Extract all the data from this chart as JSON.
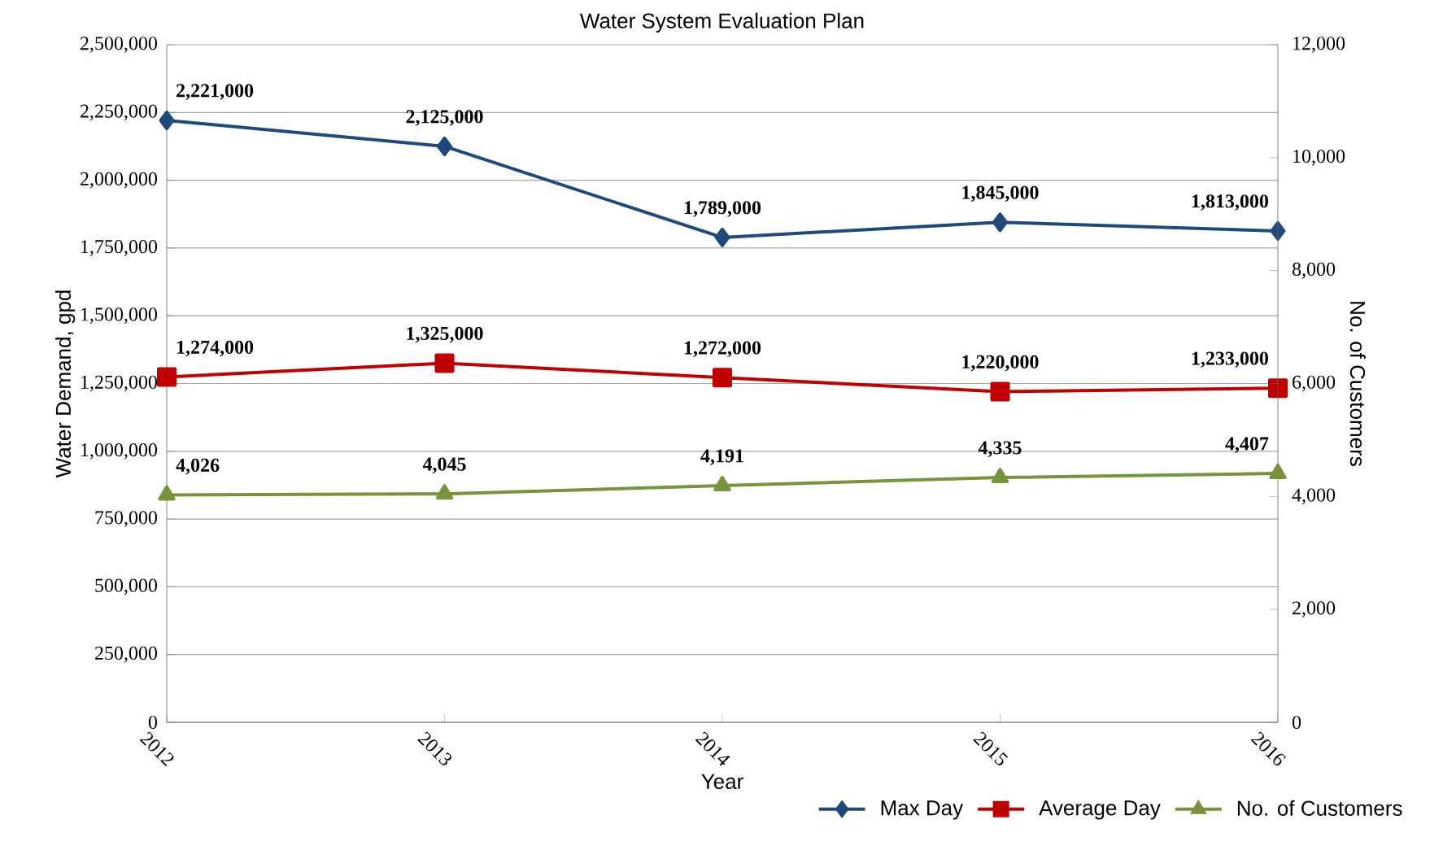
{
  "chart_data": {
    "type": "line",
    "title": "Water System Evaluation Plan",
    "xlabel": "Year",
    "ylabel": "Water Demand, gpd",
    "y2label": "No. of Customers",
    "categories": [
      "2012",
      "2013",
      "2014",
      "2015",
      "2016"
    ],
    "series": [
      {
        "name": "Max Day",
        "color": "#1f497d",
        "marker": "diamond",
        "values": [
          2221000,
          2125000,
          1789000,
          1845000,
          1813000
        ],
        "value_labels": [
          "2,221,000",
          "2,125,000",
          "1,789,000",
          "1,845,000",
          "1,813,000"
        ]
      },
      {
        "name": "Average Day",
        "color": "#c00000",
        "marker": "square",
        "values": [
          1274000,
          1325000,
          1272000,
          1220000,
          1233000
        ],
        "value_labels": [
          "1,274,000",
          "1,325,000",
          "1,272,000",
          "1,220,000",
          "1,233,000"
        ]
      },
      {
        "name": "No. of Customers",
        "color": "#77933c",
        "marker": "triangle",
        "axis": "y2",
        "values": [
          4026,
          4045,
          4191,
          4335,
          4407
        ],
        "value_labels": [
          "4,026",
          "4,045",
          "4,191",
          "4,335",
          "4,407"
        ]
      }
    ],
    "ylim": [
      0,
      2500000
    ],
    "yticks": [
      0,
      {
        "value": 250000,
        "label": "250,000"
      },
      {
        "value": 500000,
        "label": "500,000"
      },
      {
        "value": 750000,
        "label": "750,000"
      },
      {
        "value": 1000000,
        "label": "1,000,000"
      },
      {
        "value": 1250000,
        "label": "1,250,000"
      },
      {
        "value": 1500000,
        "label": "1,500,000"
      },
      {
        "value": 1750000,
        "label": "1,750,000"
      },
      {
        "value": 2000000,
        "label": "2,000,000"
      },
      {
        "value": 2250000,
        "label": "2,250,000"
      },
      {
        "value": 2500000,
        "label": "2,500,000"
      }
    ],
    "y2lim": [
      0,
      12000
    ],
    "y2ticks": [
      0,
      {
        "value": 2000,
        "label": "2,000"
      },
      {
        "value": 4000,
        "label": "4,000"
      },
      {
        "value": 6000,
        "label": "6,000"
      },
      {
        "value": 8000,
        "label": "8,000"
      },
      {
        "value": 10000,
        "label": "10,000"
      },
      {
        "value": 12000,
        "label": "12,000"
      }
    ],
    "grid": "y",
    "legend": "bottom right",
    "line_style": "solid"
  }
}
